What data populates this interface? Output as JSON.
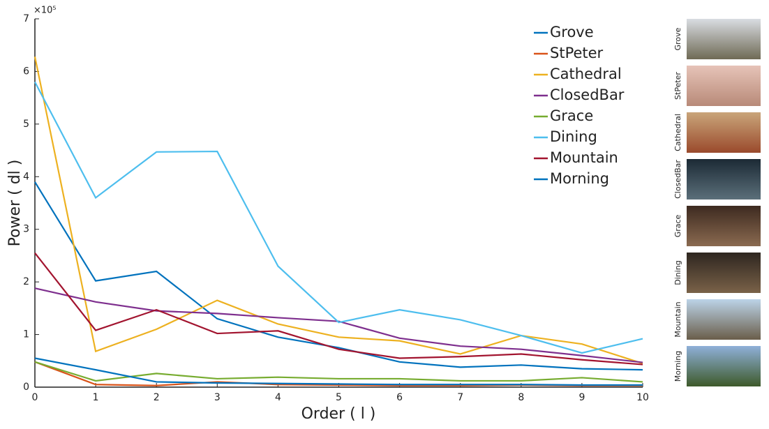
{
  "chart_data": {
    "type": "line",
    "xlabel": "Order ( l )",
    "ylabel": "Power ( dl )",
    "y_multiplier": "×10⁵",
    "x": [
      0,
      1,
      2,
      3,
      4,
      5,
      6,
      7,
      8,
      9,
      10
    ],
    "xlim": [
      0,
      10
    ],
    "xticks": [
      0,
      1,
      2,
      3,
      4,
      5,
      6,
      7,
      8,
      9,
      10
    ],
    "ylim": [
      0,
      7
    ],
    "yticks": [
      0,
      1,
      2,
      3,
      4,
      5,
      6,
      7
    ],
    "grid": false,
    "legend": "upper right",
    "series": [
      {
        "name": "Grove",
        "color": "#0072bd",
        "values": [
          3.9,
          2.02,
          2.2,
          1.3,
          0.95,
          0.75,
          0.48,
          0.38,
          0.42,
          0.35,
          0.33
        ]
      },
      {
        "name": "StPeter",
        "color": "#d95319",
        "values": [
          0.48,
          0.05,
          0.03,
          0.1,
          0.05,
          0.04,
          0.03,
          0.03,
          0.04,
          0.03,
          0.03
        ]
      },
      {
        "name": "Cathedral",
        "color": "#edb120",
        "values": [
          6.28,
          0.68,
          1.1,
          1.65,
          1.2,
          0.95,
          0.88,
          0.63,
          0.98,
          0.82,
          0.45
        ]
      },
      {
        "name": "ClosedBar",
        "color": "#7e2f8e",
        "values": [
          1.88,
          1.62,
          1.45,
          1.4,
          1.32,
          1.25,
          0.93,
          0.78,
          0.72,
          0.6,
          0.47
        ]
      },
      {
        "name": "Grace",
        "color": "#77ac30",
        "values": [
          0.48,
          0.12,
          0.26,
          0.16,
          0.19,
          0.16,
          0.16,
          0.12,
          0.12,
          0.18,
          0.1
        ]
      },
      {
        "name": "Dining",
        "color": "#4dbeee",
        "values": [
          5.8,
          3.6,
          4.47,
          4.48,
          2.3,
          1.23,
          1.47,
          1.28,
          0.98,
          0.65,
          0.92
        ]
      },
      {
        "name": "Mountain",
        "color": "#a2142f",
        "values": [
          2.55,
          1.08,
          1.47,
          1.02,
          1.07,
          0.72,
          0.55,
          0.58,
          0.63,
          0.52,
          0.43
        ]
      },
      {
        "name": "Morning",
        "color": "#0072bd",
        "values": [
          0.55,
          0.33,
          0.1,
          0.08,
          0.07,
          0.06,
          0.05,
          0.05,
          0.05,
          0.04,
          0.04
        ]
      }
    ]
  },
  "thumbnails": [
    "Grove",
    "StPeter",
    "Cathedral",
    "ClosedBar",
    "Grace",
    "Dining",
    "Mountain",
    "Morning"
  ]
}
